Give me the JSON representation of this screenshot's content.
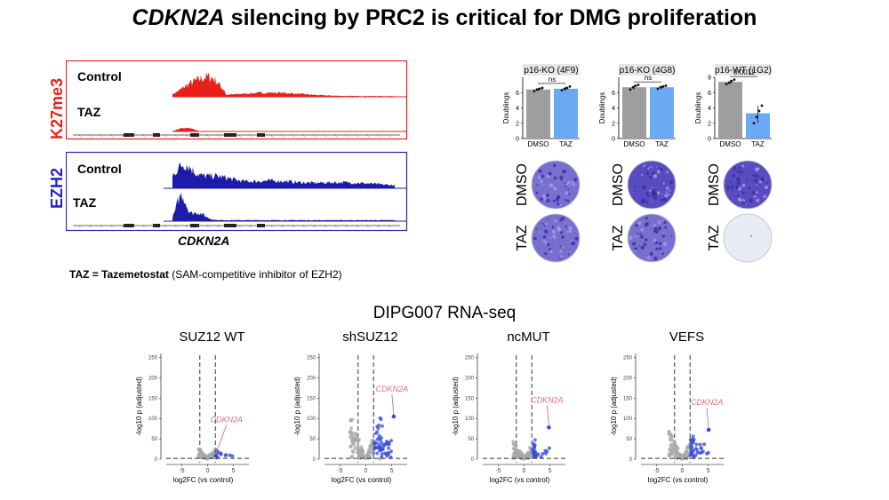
{
  "title": {
    "gene": "CDKN2A",
    "rest": " silencing by PRC2 is critical for DMG proliferation"
  },
  "tracks": {
    "k27": {
      "label": "K27me3",
      "color": "#e8201c",
      "control_label": "Control",
      "taz_label": "TAZ"
    },
    "ezh2": {
      "label": "EZH2",
      "color": "#1c1ca8",
      "control_label": "Control",
      "taz_label": "TAZ"
    },
    "gene_label": "CDKN2A"
  },
  "taz_note": {
    "bold": "TAZ = Tazemetostat",
    "rest": " (SAM-competitive inhibitor of EZH2)"
  },
  "bar_panels": [
    {
      "title": "p16-KO (4F9)",
      "ylabel": "Doublings",
      "ymax": 8,
      "yticks": [
        0,
        2,
        4,
        6
      ],
      "categories": [
        "DMSO",
        "TAZ"
      ],
      "values": [
        6.4,
        6.5
      ],
      "points": [
        [
          6.2,
          6.4,
          6.5,
          6.6
        ],
        [
          6.3,
          6.5,
          6.6,
          6.8
        ]
      ],
      "annotation": "ns",
      "well_dmso": "light",
      "well_taz": "light"
    },
    {
      "title": "p16-KO (4G8)",
      "ylabel": "Doublings",
      "ymax": 8,
      "yticks": [
        0,
        2,
        4,
        6
      ],
      "categories": [
        "DMSO",
        "TAZ"
      ],
      "values": [
        6.7,
        6.7
      ],
      "points": [
        [
          6.4,
          6.7,
          6.9,
          7.0
        ],
        [
          6.5,
          6.7,
          6.8,
          6.9
        ]
      ],
      "annotation": "ns",
      "well_dmso": "dark",
      "well_taz": "light"
    },
    {
      "title": "p16-WT (1G2)",
      "ylabel": "Doublings",
      "ymax": 8,
      "yticks": [
        0,
        2,
        4,
        6,
        8
      ],
      "categories": [
        "DMSO",
        "TAZ"
      ],
      "values": [
        7.4,
        3.3
      ],
      "points": [
        [
          7.1,
          7.3,
          7.5,
          7.7
        ],
        [
          2.0,
          2.8,
          3.6,
          4.3
        ]
      ],
      "annotation": "0.0011",
      "well_dmso": "dark",
      "well_taz": "blank"
    }
  ],
  "well_row_labels": [
    "DMSO",
    "TAZ"
  ],
  "bar_colors": {
    "dmso": "#9e9e9e",
    "taz": "#6aaaf4"
  },
  "rnaseq_title": "DIPG007 RNA-seq",
  "volcano_common": {
    "xlabel": "log2FC (vs control)",
    "ylabel": "-log10 p (adjusted)",
    "yticks": [
      0,
      50,
      100,
      150,
      200,
      250
    ],
    "xticks": [
      -5,
      0,
      5
    ],
    "xlim": [
      -8,
      8
    ],
    "ylim": [
      0,
      260
    ],
    "highlight_gene": "CDKN2A",
    "gene_color": "#d9747a",
    "point_color_sig": "#3a4fd8",
    "point_color_ns": "#a8a8a8"
  },
  "volcano_panels": [
    {
      "title": "SUZ12 WT",
      "gene_x": 1.6,
      "gene_y": 8,
      "spread": 0.3
    },
    {
      "title": "shSUZ12",
      "gene_x": 5.4,
      "gene_y": 105,
      "spread": 1.0
    },
    {
      "title": "ncMUT",
      "gene_x": 4.8,
      "gene_y": 78,
      "spread": 0.5
    },
    {
      "title": "VEFS",
      "gene_x": 5.1,
      "gene_y": 72,
      "spread": 0.7
    }
  ]
}
